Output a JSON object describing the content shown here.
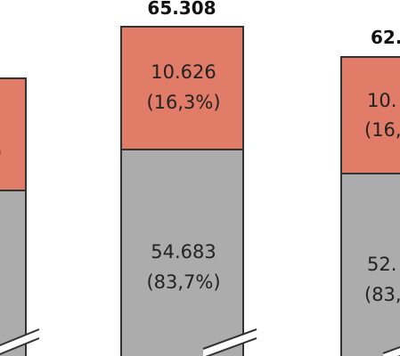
{
  "chart_data": {
    "type": "bar",
    "stacked": true,
    "visible_crop": "partial view of a stacked bar chart; left and right bars are cut off at the image edges",
    "bars": [
      {
        "total_label": "",
        "segments": [
          {
            "name": "bottom",
            "color": "#acacac",
            "value_label": "",
            "percent_label": ""
          },
          {
            "name": "top",
            "color": "#e07c67",
            "value_label": "",
            "percent_label": ")"
          }
        ]
      },
      {
        "total_label": "65.308",
        "total": 65308,
        "segments": [
          {
            "name": "bottom",
            "color": "#acacac",
            "value": 54683,
            "value_label": "54.683",
            "percent_label": "(83,7%)"
          },
          {
            "name": "top",
            "color": "#e07c67",
            "value": 10626,
            "value_label": "10.626",
            "percent_label": "(16,3%)"
          }
        ]
      },
      {
        "total_label": "62.",
        "segments": [
          {
            "name": "bottom",
            "color": "#acacac",
            "value_label": "52.",
            "percent_label": "(83,"
          },
          {
            "name": "top",
            "color": "#e07c67",
            "value_label": "10.",
            "percent_label": "(16,"
          }
        ]
      }
    ],
    "axis_break": true,
    "colors": {
      "top_segment": "#e07c67",
      "bottom_segment": "#acacac",
      "outline": "#333333"
    }
  }
}
